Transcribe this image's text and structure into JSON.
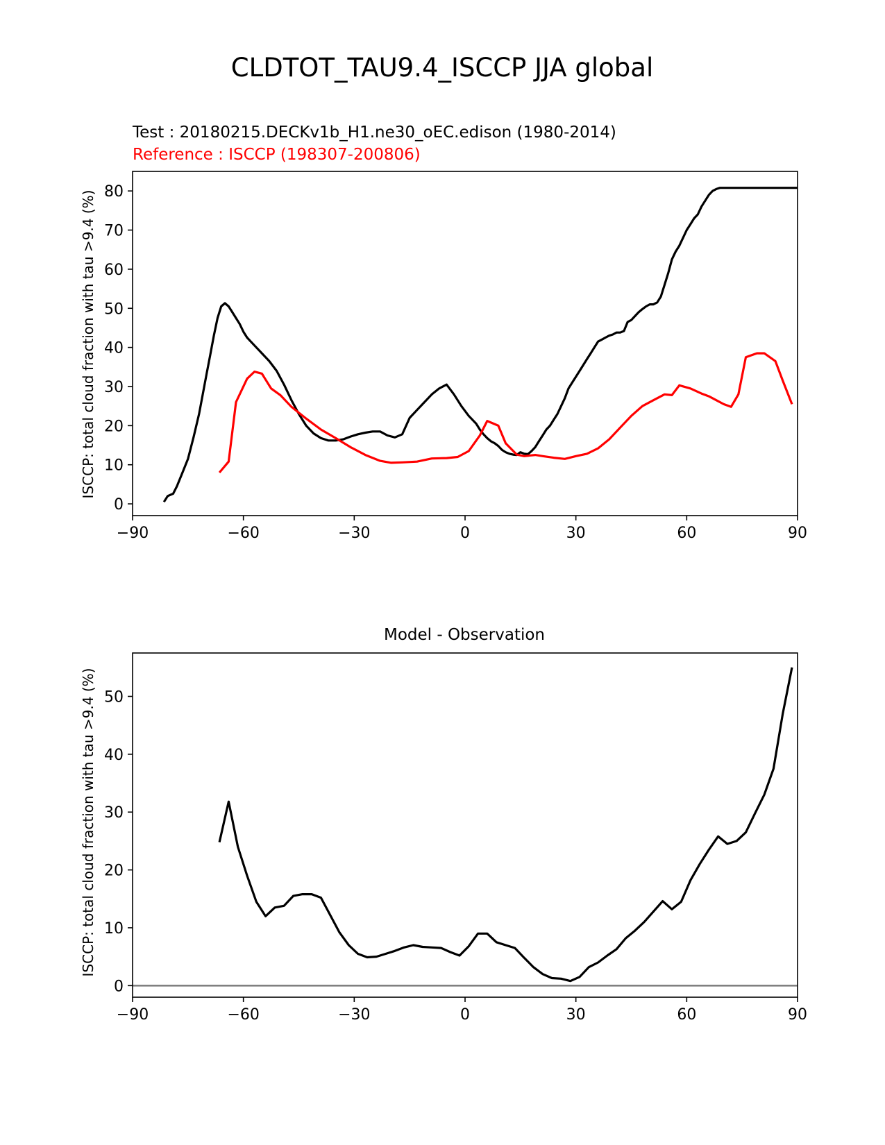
{
  "figure": {
    "suptitle": "CLDTOT_TAU9.4_ISCCP JJA global"
  },
  "chart_data": [
    {
      "type": "line",
      "test_label": "Test : 20180215.DECKv1b_H1.ne30_oEC.edison (1980-2014)",
      "reference_label": "Reference : ISCCP (198307-200806)",
      "xlabel": "",
      "ylabel": "ISCCP: total cloud fraction with tau >9.4 (%)",
      "xlim": [
        -90,
        90
      ],
      "ylim": [
        -3,
        85
      ],
      "xticks": [
        -90,
        -60,
        -30,
        0,
        30,
        60,
        90
      ],
      "xtick_labels": [
        "−90",
        "−60",
        "−30",
        "0",
        "30",
        "60",
        "90"
      ],
      "yticks": [
        0,
        10,
        20,
        30,
        40,
        50,
        60,
        70,
        80
      ],
      "ytick_labels": [
        "0",
        "10",
        "20",
        "30",
        "40",
        "50",
        "60",
        "70",
        "80"
      ],
      "series": [
        {
          "name": "Test",
          "color": "#000000",
          "x": [
            -81.5,
            -80.5,
            -79,
            -78,
            -76.5,
            -75,
            -73.5,
            -72,
            -71,
            -70,
            -69,
            -68,
            -67,
            -66,
            -65,
            -64,
            -63,
            -62,
            -61,
            -60,
            -59,
            -58,
            -57,
            -55,
            -53,
            -51,
            -49,
            -47,
            -45,
            -43,
            -41,
            -39,
            -37,
            -35,
            -33,
            -31,
            -29,
            -27,
            -25,
            -23,
            -21,
            -19,
            -17,
            -15,
            -13,
            -11,
            -9,
            -7,
            -5,
            -3,
            -1,
            1,
            3,
            4,
            5,
            6,
            7,
            8,
            9,
            10,
            11,
            12,
            13,
            14,
            15,
            16,
            17,
            18,
            19,
            20,
            21,
            22,
            23,
            24,
            25,
            26,
            27,
            28,
            29,
            30,
            31,
            32,
            33,
            34,
            35,
            36,
            37,
            38,
            39,
            40,
            41,
            42,
            43,
            44,
            45,
            46,
            47,
            48,
            49,
            50,
            51,
            52,
            53,
            54,
            55,
            56,
            57,
            58,
            59,
            60,
            61,
            62,
            63,
            64,
            65,
            66,
            67,
            68,
            69,
            70,
            71,
            72,
            73,
            74,
            75,
            76,
            77,
            78,
            79,
            80,
            81,
            82,
            83,
            84,
            85,
            86,
            87,
            88,
            89,
            90
          ],
          "values": [
            0.5,
            2,
            2.6,
            4.5,
            8,
            11.5,
            17,
            23,
            28,
            33,
            38,
            43,
            47.5,
            50.5,
            51.3,
            50.5,
            49,
            47.5,
            46,
            44,
            42.5,
            41.5,
            40.5,
            38.5,
            36.5,
            34,
            30.5,
            26.5,
            23,
            20,
            18,
            16.8,
            16.2,
            16.2,
            16.5,
            17.2,
            17.8,
            18.2,
            18.5,
            18.5,
            17.5,
            17,
            17.8,
            22,
            24,
            26,
            28,
            29.5,
            30.5,
            28,
            25,
            22.5,
            20.5,
            19,
            17.8,
            16.8,
            16,
            15.5,
            14.8,
            13.8,
            13.2,
            12.8,
            12.6,
            12.5,
            13.2,
            12.8,
            12.7,
            13.5,
            14.5,
            16,
            17.5,
            19,
            20,
            21.5,
            23,
            25,
            27,
            29.5,
            31,
            32.5,
            34,
            35.5,
            37,
            38.5,
            40,
            41.5,
            42,
            42.5,
            43,
            43.3,
            43.8,
            43.8,
            44.2,
            46.5,
            47,
            48,
            49,
            49.8,
            50.5,
            51,
            51,
            51.5,
            53,
            56,
            59,
            62.5,
            64.5,
            66,
            68,
            70,
            71.5,
            73,
            74,
            76,
            77.5,
            79,
            80,
            80.5,
            80.8,
            80.8,
            80.8,
            80.8,
            80.8,
            80.8,
            80.8,
            80.8,
            80.8,
            80.8,
            80.8,
            80.8,
            80.8,
            80.8,
            80.8,
            80.8,
            80.8,
            80.8,
            80.8,
            80.8,
            80.8,
            80.8
          ]
        },
        {
          "name": "Reference",
          "color": "#ff0000",
          "x": [
            -66.5,
            -64,
            -62,
            -59,
            -57,
            -55,
            -52.5,
            -50,
            -47,
            -43,
            -39,
            -35,
            -31,
            -27,
            -23,
            -20,
            -17,
            -13,
            -9,
            -5,
            -2,
            1,
            4,
            6,
            9,
            11,
            14,
            16,
            19,
            21,
            24,
            27,
            30,
            33,
            36,
            39,
            42,
            45,
            48,
            51,
            54,
            56,
            58,
            61,
            64,
            66,
            68,
            70,
            72,
            74,
            76,
            79,
            81,
            84,
            86,
            88.5
          ],
          "values": [
            8,
            10.8,
            26,
            32,
            33.8,
            33.3,
            29.5,
            27.8,
            24.8,
            21.8,
            19,
            16.8,
            14.5,
            12.5,
            11,
            10.5,
            10.6,
            10.8,
            11.6,
            11.7,
            12,
            13.5,
            17.5,
            21.2,
            20,
            15.5,
            12.6,
            12.2,
            12.5,
            12.2,
            11.8,
            11.5,
            12.2,
            12.8,
            14.2,
            16.5,
            19.5,
            22.5,
            25,
            26.5,
            28,
            27.8,
            30.3,
            29.5,
            28.2,
            27.5,
            26.5,
            25.5,
            24.8,
            28,
            37.5,
            38.5,
            38.5,
            36.5,
            31.5,
            25.5
          ]
        }
      ]
    },
    {
      "type": "line",
      "title": "Model - Observation",
      "xlabel": "",
      "ylabel": "ISCCP: total cloud fraction with tau >9.4 (%)",
      "xlim": [
        -90,
        90
      ],
      "ylim": [
        -2,
        57.5
      ],
      "xticks": [
        -90,
        -60,
        -30,
        0,
        30,
        60,
        90
      ],
      "xtick_labels": [
        "−90",
        "−60",
        "−30",
        "0",
        "30",
        "60",
        "90"
      ],
      "yticks": [
        0,
        10,
        20,
        30,
        40,
        50
      ],
      "ytick_labels": [
        "0",
        "10",
        "20",
        "30",
        "40",
        "50"
      ],
      "zero_line_color": "#808080",
      "series": [
        {
          "name": "Model - Observation",
          "color": "#000000",
          "x": [
            -66.5,
            -64,
            -61.5,
            -59,
            -56.5,
            -54,
            -51.5,
            -49,
            -46.5,
            -44,
            -41.5,
            -39,
            -36.5,
            -34,
            -31.5,
            -29,
            -26.5,
            -24,
            -21.5,
            -19,
            -16.5,
            -14,
            -11.5,
            -9,
            -6.5,
            -4,
            -1.5,
            1,
            3.5,
            6,
            8.5,
            11,
            13.5,
            16,
            18.5,
            21,
            23.5,
            26,
            28.5,
            31,
            33.5,
            36,
            38.5,
            41,
            43.5,
            46,
            48.5,
            51,
            53.5,
            56,
            58.5,
            61,
            63.5,
            66,
            68.5,
            71,
            73.5,
            76,
            78.5,
            81,
            83.5,
            86,
            88.5
          ],
          "values": [
            24.8,
            31.8,
            24,
            19,
            14.5,
            12,
            13.5,
            13.8,
            15.5,
            15.8,
            15.8,
            15.2,
            12.2,
            9.2,
            7,
            5.5,
            4.9,
            5,
            5.5,
            6,
            6.6,
            7,
            6.7,
            6.6,
            6.5,
            5.8,
            5.2,
            6.8,
            9,
            9,
            7.5,
            7,
            6.5,
            4.8,
            3.2,
            2,
            1.3,
            1.2,
            0.8,
            1.5,
            3.2,
            4,
            5.2,
            6.3,
            8.2,
            9.5,
            11,
            12.8,
            14.6,
            13.2,
            14.5,
            18.2,
            21,
            23.5,
            25.8,
            24.5,
            25,
            26.5,
            29.8,
            33,
            37.5,
            47,
            55
          ]
        }
      ]
    }
  ]
}
